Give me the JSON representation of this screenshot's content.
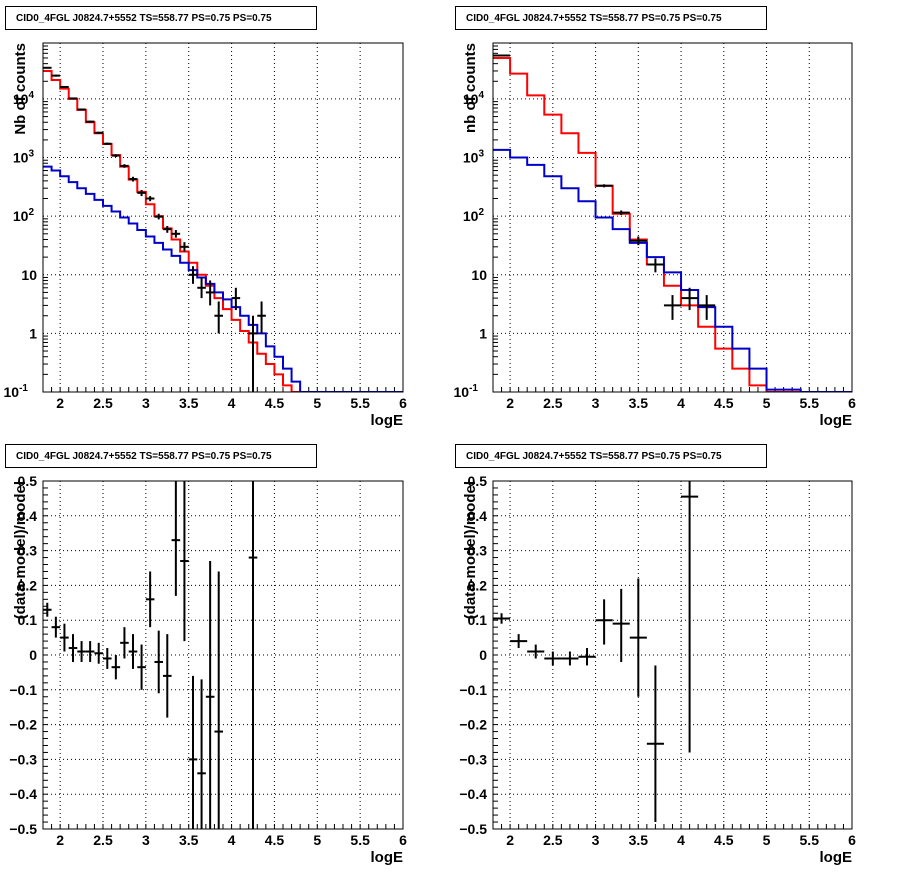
{
  "colors": {
    "data": "#000000",
    "total_model": "#ff0000",
    "source_model": "#0000cc",
    "grid": "#000000"
  },
  "chart_data": [
    {
      "type": "line",
      "panel": "top-left",
      "title": "CID0_4FGL J0824.7+5552 TS=558.77 PS=0.75 PS=0.75",
      "xlabel": "logE",
      "ylabel": "Nb of counts",
      "xlim": [
        1.8,
        6.0
      ],
      "ylim": [
        0.1,
        90000
      ],
      "log_y": true,
      "grid": true,
      "x_ticks": [
        "2",
        "2.5",
        "3",
        "3.5",
        "4",
        "4.5",
        "5",
        "5.5",
        "6"
      ],
      "y_ticks": [
        "10^-1",
        "1",
        "10",
        "10^2",
        "10^3",
        "10^4"
      ],
      "bin_edges": [
        1.8,
        1.9,
        2.0,
        2.1,
        2.2,
        2.3,
        2.4,
        2.5,
        2.6,
        2.7,
        2.8,
        2.9,
        3.0,
        3.1,
        3.2,
        3.3,
        3.4,
        3.5,
        3.6,
        3.7,
        3.8,
        3.9,
        4.0,
        4.1,
        4.2,
        4.3,
        4.4,
        4.5,
        4.6,
        4.7,
        4.8,
        4.9,
        5.0,
        5.2,
        5.4,
        5.6,
        5.8,
        6.0
      ],
      "series": [
        {
          "kind": "hist",
          "color_key": "total_model",
          "values": [
            30000,
            21000,
            15000,
            10000,
            6500,
            4000,
            2600,
            1700,
            1100,
            700,
            420,
            260,
            160,
            100,
            62,
            40,
            25,
            16,
            10,
            6.5,
            4,
            2.6,
            1.7,
            1.1,
            0.7,
            0.45,
            0.3,
            0.2,
            0.13,
            0.09,
            0.1,
            0.1,
            0.1,
            0.1,
            0.1,
            0.1,
            0.1
          ]
        },
        {
          "kind": "hist",
          "color_key": "source_model",
          "values": [
            700,
            600,
            480,
            380,
            300,
            240,
            190,
            150,
            120,
            95,
            75,
            58,
            45,
            35,
            27,
            21,
            16,
            12,
            9,
            7,
            5,
            3.8,
            2.8,
            2,
            1.4,
            1,
            0.6,
            0.4,
            0.25,
            0.15,
            0.1,
            0.1,
            0.1,
            0.1,
            0.1,
            0.1,
            0.1
          ]
        },
        {
          "kind": "points",
          "color_key": "data",
          "points": [
            {
              "x": 1.85,
              "y": 34000,
              "ylo": 33000,
              "yhi": 35000
            },
            {
              "x": 1.95,
              "y": 25000,
              "ylo": 24000,
              "yhi": 26000
            },
            {
              "x": 2.05,
              "y": 16000,
              "ylo": 15500,
              "yhi": 16500
            },
            {
              "x": 2.15,
              "y": 10200,
              "ylo": 9900,
              "yhi": 10500
            },
            {
              "x": 2.25,
              "y": 6600,
              "ylo": 6400,
              "yhi": 6800
            },
            {
              "x": 2.35,
              "y": 4100,
              "ylo": 3950,
              "yhi": 4250
            },
            {
              "x": 2.45,
              "y": 2650,
              "ylo": 2550,
              "yhi": 2750
            },
            {
              "x": 2.55,
              "y": 1720,
              "ylo": 1650,
              "yhi": 1800
            },
            {
              "x": 2.65,
              "y": 1080,
              "ylo": 1020,
              "yhi": 1140
            },
            {
              "x": 2.75,
              "y": 720,
              "ylo": 670,
              "yhi": 770
            },
            {
              "x": 2.85,
              "y": 430,
              "ylo": 390,
              "yhi": 470
            },
            {
              "x": 2.95,
              "y": 250,
              "ylo": 220,
              "yhi": 280
            },
            {
              "x": 3.05,
              "y": 200,
              "ylo": 180,
              "yhi": 220
            },
            {
              "x": 3.15,
              "y": 98,
              "ylo": 88,
              "yhi": 110
            },
            {
              "x": 3.25,
              "y": 60,
              "ylo": 52,
              "yhi": 68
            },
            {
              "x": 3.35,
              "y": 50,
              "ylo": 43,
              "yhi": 58
            },
            {
              "x": 3.45,
              "y": 30,
              "ylo": 25,
              "yhi": 36
            },
            {
              "x": 3.55,
              "y": 10,
              "ylo": 7,
              "yhi": 14
            },
            {
              "x": 3.65,
              "y": 6,
              "ylo": 4,
              "yhi": 9
            },
            {
              "x": 3.75,
              "y": 5,
              "ylo": 3,
              "yhi": 8
            },
            {
              "x": 3.85,
              "y": 2,
              "ylo": 1,
              "yhi": 3.5
            },
            {
              "x": 4.05,
              "y": 4,
              "ylo": 2.5,
              "yhi": 6
            },
            {
              "x": 4.25,
              "y": 1,
              "ylo": 0.1,
              "yhi": 2
            },
            {
              "x": 4.35,
              "y": 2,
              "ylo": 1,
              "yhi": 3.5
            }
          ]
        }
      ]
    },
    {
      "type": "line",
      "panel": "top-right",
      "title": "CID0_4FGL J0824.7+5552 TS=558.77 PS=0.75 PS=0.75",
      "xlabel": "logE",
      "ylabel": "nb of counts",
      "xlim": [
        1.8,
        6.0
      ],
      "ylim": [
        0.1,
        90000
      ],
      "log_y": true,
      "grid": true,
      "x_ticks": [
        "2",
        "2.5",
        "3",
        "3.5",
        "4",
        "4.5",
        "5",
        "5.5",
        "6"
      ],
      "y_ticks": [
        "10^-1",
        "1",
        "10",
        "10^2",
        "10^3",
        "10^4"
      ],
      "bin_edges": [
        1.8,
        2.0,
        2.2,
        2.4,
        2.6,
        2.8,
        3.0,
        3.2,
        3.4,
        3.6,
        3.8,
        4.0,
        4.2,
        4.4,
        4.6,
        4.8,
        5.0,
        5.4,
        5.8,
        6.0
      ],
      "series": [
        {
          "kind": "hist",
          "color_key": "total_model",
          "values": [
            50000,
            27000,
            11500,
            5400,
            2600,
            1200,
            330,
            110,
            40,
            15,
            6.5,
            3,
            1.3,
            0.55,
            0.25,
            0.13,
            0.1,
            0.1,
            0.1
          ]
        },
        {
          "kind": "hist",
          "color_key": "source_model",
          "values": [
            1350,
            1000,
            750,
            480,
            300,
            180,
            95,
            60,
            35,
            20,
            11,
            5.5,
            2.8,
            1.3,
            0.55,
            0.25,
            0.11,
            0.1,
            0.1
          ]
        },
        {
          "kind": "points",
          "color_key": "data",
          "points": [
            {
              "x": 1.9,
              "y": 55000,
              "ylo": 53000,
              "yhi": 57000
            },
            {
              "x": 3.1,
              "y": 330,
              "ylo": 310,
              "yhi": 350
            },
            {
              "x": 3.3,
              "y": 115,
              "ylo": 105,
              "yhi": 125
            },
            {
              "x": 3.5,
              "y": 38,
              "ylo": 32,
              "yhi": 45
            },
            {
              "x": 3.7,
              "y": 15,
              "ylo": 11,
              "yhi": 19
            },
            {
              "x": 3.9,
              "y": 3,
              "ylo": 1.7,
              "yhi": 4.5
            },
            {
              "x": 4.1,
              "y": 4,
              "ylo": 2.5,
              "yhi": 6
            },
            {
              "x": 4.3,
              "y": 3,
              "ylo": 1.7,
              "yhi": 4.5
            }
          ]
        }
      ]
    },
    {
      "type": "scatter",
      "panel": "bottom-left",
      "title": "CID0_4FGL J0824.7+5552 TS=558.77 PS=0.75 PS=0.75",
      "xlabel": "logE",
      "ylabel": "(data-model)/model",
      "xlim": [
        1.8,
        6.0
      ],
      "ylim": [
        -0.5,
        0.5
      ],
      "grid": true,
      "x_ticks": [
        "2",
        "2.5",
        "3",
        "3.5",
        "4",
        "4.5",
        "5",
        "5.5",
        "6"
      ],
      "y_ticks": [
        "−0.5",
        "−0.4",
        "−0.3",
        "−0.2",
        "−0.1",
        "0",
        "0.1",
        "0.2",
        "0.3",
        "0.4",
        "0.5"
      ],
      "series": [
        {
          "kind": "points",
          "color_key": "data",
          "halfwidth": 0.05,
          "points": [
            {
              "x": 1.85,
              "y": 0.13,
              "ylo": 0.11,
              "yhi": 0.15
            },
            {
              "x": 1.95,
              "y": 0.08,
              "ylo": 0.05,
              "yhi": 0.11
            },
            {
              "x": 2.05,
              "y": 0.05,
              "ylo": 0.01,
              "yhi": 0.09
            },
            {
              "x": 2.15,
              "y": 0.02,
              "ylo": -0.02,
              "yhi": 0.06
            },
            {
              "x": 2.25,
              "y": 0.01,
              "ylo": -0.02,
              "yhi": 0.04
            },
            {
              "x": 2.35,
              "y": 0.01,
              "ylo": -0.02,
              "yhi": 0.04
            },
            {
              "x": 2.45,
              "y": 0.005,
              "ylo": -0.025,
              "yhi": 0.035
            },
            {
              "x": 2.55,
              "y": -0.01,
              "ylo": -0.04,
              "yhi": 0.02
            },
            {
              "x": 2.65,
              "y": -0.035,
              "ylo": -0.07,
              "yhi": 0.0
            },
            {
              "x": 2.75,
              "y": 0.035,
              "ylo": -0.01,
              "yhi": 0.08
            },
            {
              "x": 2.85,
              "y": 0.01,
              "ylo": -0.04,
              "yhi": 0.06
            },
            {
              "x": 2.95,
              "y": -0.035,
              "ylo": -0.1,
              "yhi": 0.03
            },
            {
              "x": 3.05,
              "y": 0.16,
              "ylo": 0.08,
              "yhi": 0.24
            },
            {
              "x": 3.15,
              "y": -0.02,
              "ylo": -0.11,
              "yhi": 0.07
            },
            {
              "x": 3.25,
              "y": -0.06,
              "ylo": -0.18,
              "yhi": 0.06
            },
            {
              "x": 3.35,
              "y": 0.33,
              "ylo": 0.17,
              "yhi": 0.5
            },
            {
              "x": 3.45,
              "y": 0.27,
              "ylo": 0.04,
              "yhi": 0.5
            },
            {
              "x": 3.55,
              "y": -0.3,
              "ylo": -0.5,
              "yhi": -0.06
            },
            {
              "x": 3.65,
              "y": -0.34,
              "ylo": -0.5,
              "yhi": -0.07
            },
            {
              "x": 3.75,
              "y": -0.12,
              "ylo": -0.5,
              "yhi": 0.27
            },
            {
              "x": 3.85,
              "y": -0.22,
              "ylo": -0.5,
              "yhi": 0.24
            },
            {
              "x": 4.25,
              "y": 0.28,
              "ylo": -0.5,
              "yhi": 0.5
            }
          ]
        }
      ]
    },
    {
      "type": "scatter",
      "panel": "bottom-right",
      "title": "CID0_4FGL J0824.7+5552 TS=558.77 PS=0.75 PS=0.75",
      "xlabel": "logE",
      "ylabel": "(data-model)/model",
      "xlim": [
        1.8,
        6.0
      ],
      "ylim": [
        -0.5,
        0.5
      ],
      "grid": true,
      "x_ticks": [
        "2",
        "2.5",
        "3",
        "3.5",
        "4",
        "4.5",
        "5",
        "5.5",
        "6"
      ],
      "y_ticks": [
        "−0.5",
        "−0.4",
        "−0.3",
        "−0.2",
        "−0.1",
        "0",
        "0.1",
        "0.2",
        "0.3",
        "0.4",
        "0.5"
      ],
      "series": [
        {
          "kind": "points",
          "color_key": "data",
          "halfwidth": 0.1,
          "points": [
            {
              "x": 1.9,
              "y": 0.105,
              "ylo": 0.09,
              "yhi": 0.12
            },
            {
              "x": 2.1,
              "y": 0.04,
              "ylo": 0.02,
              "yhi": 0.06
            },
            {
              "x": 2.3,
              "y": 0.01,
              "ylo": -0.01,
              "yhi": 0.03
            },
            {
              "x": 2.5,
              "y": -0.01,
              "ylo": -0.03,
              "yhi": 0.01
            },
            {
              "x": 2.7,
              "y": -0.01,
              "ylo": -0.03,
              "yhi": 0.01
            },
            {
              "x": 2.9,
              "y": -0.005,
              "ylo": -0.03,
              "yhi": 0.02
            },
            {
              "x": 3.1,
              "y": 0.1,
              "ylo": 0.03,
              "yhi": 0.16
            },
            {
              "x": 3.3,
              "y": 0.09,
              "ylo": -0.02,
              "yhi": 0.19
            },
            {
              "x": 3.5,
              "y": 0.05,
              "ylo": -0.12,
              "yhi": 0.22
            },
            {
              "x": 3.7,
              "y": -0.255,
              "ylo": -0.48,
              "yhi": -0.03
            },
            {
              "x": 4.1,
              "y": 0.455,
              "ylo": -0.28,
              "yhi": 0.5
            }
          ]
        }
      ]
    }
  ]
}
